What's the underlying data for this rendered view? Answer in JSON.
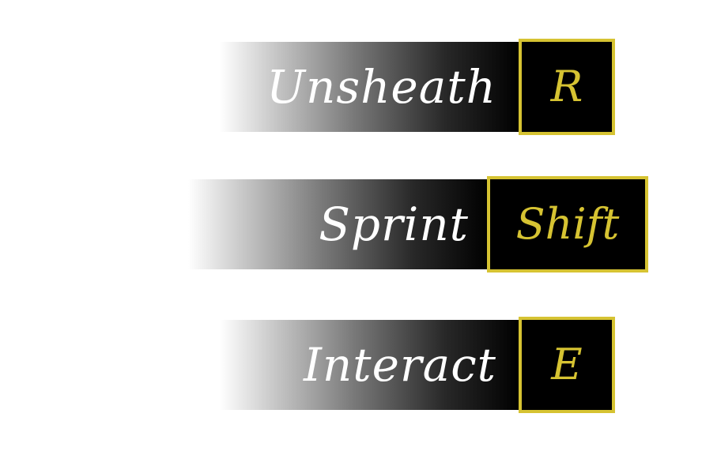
{
  "prompts": [
    {
      "action": "Unsheath",
      "key": "R"
    },
    {
      "action": "Sprint",
      "key": "Shift"
    },
    {
      "action": "Interact",
      "key": "E"
    }
  ],
  "colors": {
    "background": "#ffffff",
    "bar_end": "#000000",
    "action_text": "#ffffff",
    "key_border": "#d6c332",
    "key_text": "#d6c332",
    "key_fill": "#000000"
  }
}
